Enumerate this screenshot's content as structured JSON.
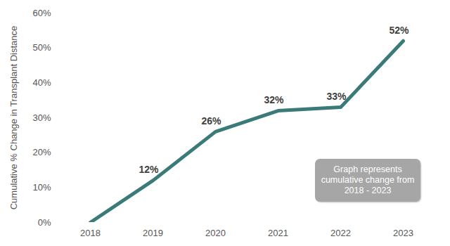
{
  "chart_data": {
    "type": "line",
    "y_label": "Cumulative % Change in Transplant Distance",
    "categories": [
      "2018",
      "2019",
      "2020",
      "2021",
      "2022",
      "2023"
    ],
    "values": [
      0,
      12,
      26,
      32,
      33,
      52
    ],
    "value_labels": [
      null,
      "12%",
      "26%",
      "32%",
      "33%",
      "52%"
    ],
    "color": "#3a7b79",
    "ylim": [
      0,
      60
    ],
    "yticks": [
      {
        "value": 0,
        "label": "0%"
      },
      {
        "value": 10,
        "label": "10%"
      },
      {
        "value": 20,
        "label": "20%"
      },
      {
        "value": 30,
        "label": "30%"
      },
      {
        "value": 40,
        "label": "40%"
      },
      {
        "value": 50,
        "label": "50%"
      },
      {
        "value": 60,
        "label": "60%"
      }
    ],
    "grid": false,
    "data_labels": true,
    "annotation": "Graph represents cumulative change from 2018 - 2023"
  }
}
